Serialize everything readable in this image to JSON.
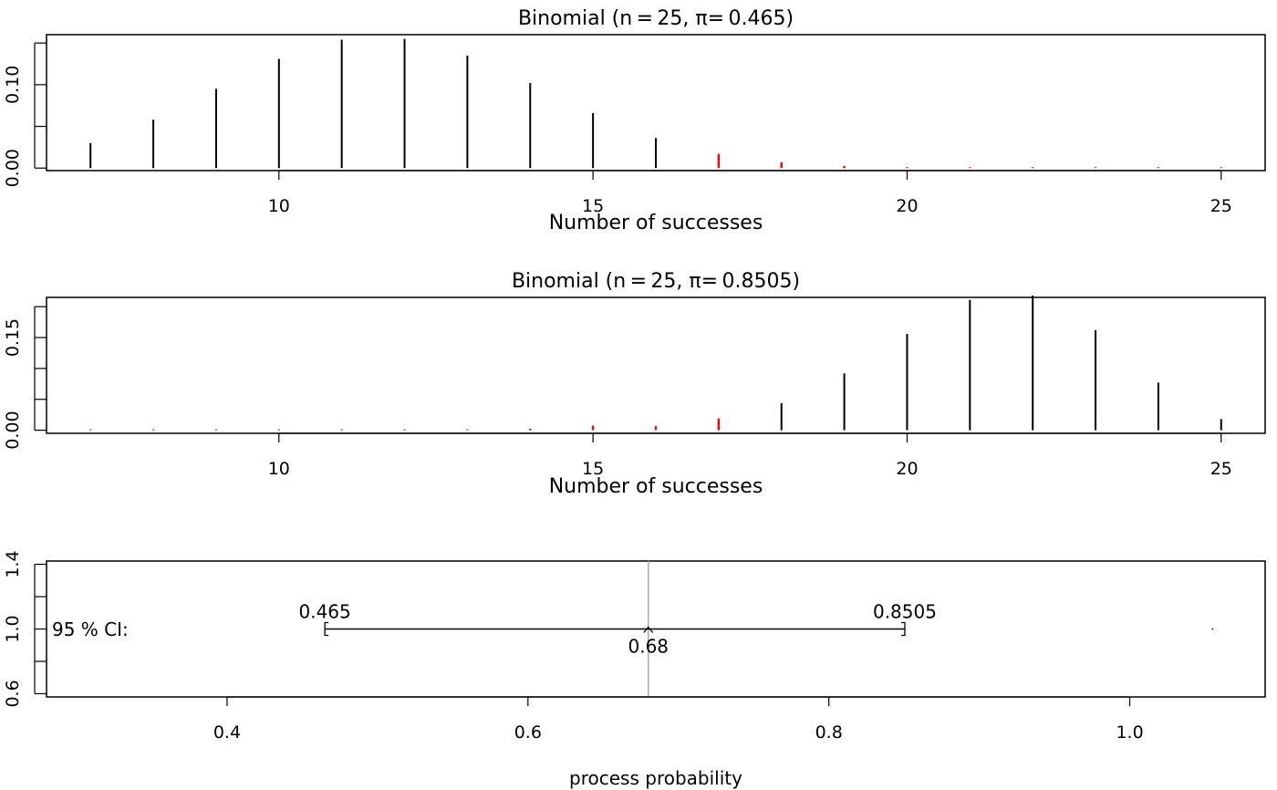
{
  "colors": {
    "black_bars": "#000000",
    "red_bars": "#dd1111",
    "center_line": "#aaaaaa"
  },
  "chart_data": [
    {
      "type": "bar",
      "title": "Binomial (n = 25, π= 0.465)",
      "xlabel": "Number of successes",
      "ylabel": "",
      "xlim": [
        6.3,
        25.7
      ],
      "ylim": [
        -0.003,
        0.16
      ],
      "x_ticks": [
        10,
        15,
        20,
        25
      ],
      "y_ticks": [
        0.0,
        0.05,
        0.1,
        0.15
      ],
      "y_tick_labels": [
        {
          "value": 0.0,
          "label": "0.00"
        },
        {
          "value": 0.1,
          "label": "0.10"
        }
      ],
      "x": [
        7,
        8,
        9,
        10,
        11,
        12,
        13,
        14,
        15,
        16,
        17,
        18,
        19,
        20,
        21,
        22,
        23,
        24,
        25
      ],
      "values": [
        0.03,
        0.058,
        0.095,
        0.131,
        0.154,
        0.155,
        0.135,
        0.102,
        0.066,
        0.036,
        0.017,
        0.007,
        0.0025,
        0.0008,
        0.0002,
        4e-05,
        1e-05,
        1e-06,
        1e-07
      ],
      "highlight_from_x": 17
    },
    {
      "type": "bar",
      "title": "Binomial (n = 25, π= 0.8505)",
      "xlabel": "Number of successes",
      "ylabel": "",
      "xlim": [
        6.3,
        25.7
      ],
      "ylim": [
        -0.005,
        0.215
      ],
      "x_ticks": [
        10,
        15,
        20,
        25
      ],
      "y_ticks": [
        0.0,
        0.05,
        0.1,
        0.15,
        0.2
      ],
      "y_tick_labels": [
        {
          "value": 0.0,
          "label": "0.00"
        },
        {
          "value": 0.15,
          "label": "0.15"
        }
      ],
      "x": [
        7,
        8,
        9,
        10,
        11,
        12,
        13,
        14,
        15,
        16,
        17,
        18,
        19,
        20,
        21,
        22,
        23,
        24,
        25
      ],
      "values": [
        1e-07,
        5e-07,
        2e-06,
        1e-05,
        5e-05,
        0.0002,
        0.0008,
        0.0025,
        0.0076,
        0.0067,
        0.019,
        0.044,
        0.092,
        0.156,
        0.211,
        0.218,
        0.162,
        0.077,
        0.018
      ],
      "highlight_until_x": 17
    },
    {
      "type": "interval",
      "title": "",
      "xlabel": "process probability",
      "xlim": [
        0.28,
        1.09
      ],
      "ylim": [
        0.58,
        1.42
      ],
      "x_ticks": [
        0.4,
        0.6,
        0.8,
        1.0
      ],
      "x_tick_labels": [
        "0.4",
        "0.6",
        "0.8",
        "1.0"
      ],
      "y_ticks": [
        0.6,
        0.8,
        1.0,
        1.2,
        1.4
      ],
      "y_tick_labels": [
        {
          "value": 0.6,
          "label": "0.6"
        },
        {
          "value": 1.0,
          "label": "1.0"
        },
        {
          "value": 1.4,
          "label": "1.4"
        }
      ],
      "ci_label": "95 % CI:",
      "lower": 0.465,
      "upper": 0.8505,
      "estimate": 0.68,
      "lower_label": "0.465",
      "upper_label": "0.8505",
      "estimate_label": "0.68",
      "extra_point": 1.055
    }
  ]
}
